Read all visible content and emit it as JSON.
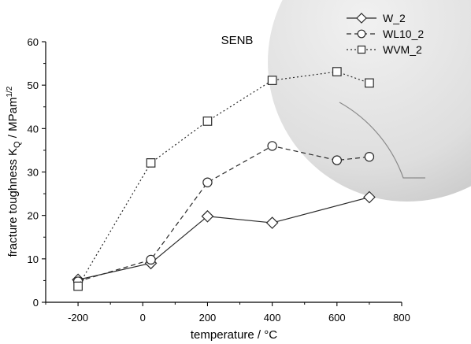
{
  "chart_data": {
    "type": "line",
    "title": "SENB",
    "xlabel": "temperature / °C",
    "ylabel_main": "fracture toughness K",
    "ylabel_sub": "Q",
    "ylabel_unit": " / MPam",
    "ylabel_sup": "1/2",
    "xlim": [
      -300,
      800
    ],
    "ylim": [
      0,
      60
    ],
    "xticks": [
      -200,
      0,
      200,
      400,
      600,
      800
    ],
    "yticks": [
      0,
      10,
      20,
      30,
      40,
      50,
      60
    ],
    "legend_position": "top-right",
    "grid": false,
    "series": [
      {
        "name": "W_2",
        "marker": "diamond",
        "line_style": "solid",
        "x": [
          -200,
          25,
          200,
          400,
          700
        ],
        "y": [
          5.2,
          9.0,
          19.8,
          18.3,
          24.2
        ]
      },
      {
        "name": "WL10_2",
        "marker": "circle",
        "line_style": "dashed",
        "x": [
          -200,
          25,
          200,
          400,
          600,
          700
        ],
        "y": [
          4.8,
          9.8,
          27.6,
          36.0,
          32.7,
          33.5
        ]
      },
      {
        "name": "WVM_2",
        "marker": "square",
        "line_style": "dotted",
        "x": [
          -200,
          25,
          200,
          400,
          600,
          700
        ],
        "y": [
          3.7,
          32.1,
          41.7,
          51.1,
          53.1,
          50.5
        ]
      }
    ]
  },
  "colors": {
    "line": "#2a2a2a",
    "marker_fill": "#ffffff",
    "overlay_fill": "#e2e2e2",
    "overlay_edge": "#9a9a9a"
  }
}
